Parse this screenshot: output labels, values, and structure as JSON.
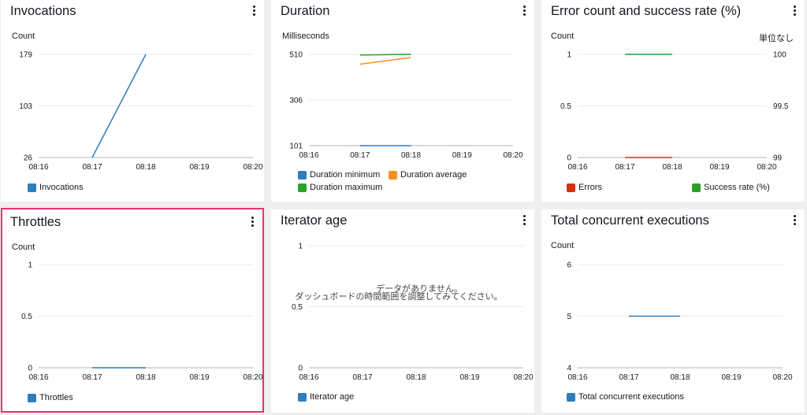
{
  "colors": {
    "blue": "#2e7dbd",
    "orange": "#f58f25",
    "green": "#2ca02c",
    "red": "#d13212",
    "grid": "#e9ebed",
    "axis": "#aab7b8",
    "highlight": "#e8336a"
  },
  "x_ticks": [
    "08:16",
    "08:17",
    "08:18",
    "08:19",
    "08:20"
  ],
  "panels": {
    "invocations": {
      "title": "Invocations",
      "left_unit": "Count",
      "legend": [
        {
          "label": "Invocations",
          "color": "#2e7dbd"
        }
      ]
    },
    "duration": {
      "title": "Duration",
      "left_unit": "Milliseconds",
      "legend": [
        {
          "label": "Duration minimum",
          "color": "#2e7dbd"
        },
        {
          "label": "Duration average",
          "color": "#f58f25"
        },
        {
          "label": "Duration maximum",
          "color": "#2ca02c"
        }
      ]
    },
    "errors": {
      "title": "Error count and success rate (%)",
      "left_unit": "Count",
      "right_unit": "単位なし",
      "legend": [
        {
          "label": "Errors",
          "color": "#d13212"
        },
        {
          "label": "Success rate (%)",
          "color": "#2ca02c"
        }
      ]
    },
    "throttles": {
      "title": "Throttles",
      "left_unit": "Count",
      "legend": [
        {
          "label": "Throttles",
          "color": "#2e7dbd"
        }
      ]
    },
    "iterator": {
      "title": "Iterator age",
      "no_data_line1": "データがありません。",
      "no_data_line2": "ダッシュボードの時間範囲を調整してみてください。",
      "legend": [
        {
          "label": "Iterator age",
          "color": "#2e7dbd"
        }
      ]
    },
    "concurrent": {
      "title": "Total concurrent executions",
      "left_unit": "Count",
      "legend": [
        {
          "label": "Total concurrent executions",
          "color": "#2e7dbd"
        }
      ]
    }
  },
  "chart_data": [
    {
      "panel": "invocations",
      "type": "line",
      "title": "Invocations",
      "ylabel": "Count",
      "x_ticks": [
        "08:16",
        "08:17",
        "08:18",
        "08:19",
        "08:20"
      ],
      "y_ticks": [
        "26",
        "103",
        "179"
      ],
      "ylim": [
        26,
        179
      ],
      "series": [
        {
          "name": "Invocations",
          "color": "#2e7dbd",
          "points": [
            [
              "08:17",
              26
            ],
            [
              "08:18",
              179
            ]
          ]
        }
      ]
    },
    {
      "panel": "duration",
      "type": "line",
      "title": "Duration",
      "ylabel": "Milliseconds",
      "x_ticks": [
        "08:16",
        "08:17",
        "08:18",
        "08:19",
        "08:20"
      ],
      "y_ticks": [
        "101",
        "306",
        "510"
      ],
      "ylim": [
        101,
        510
      ],
      "series": [
        {
          "name": "Duration minimum",
          "color": "#2e7dbd",
          "points": [
            [
              "08:17",
              101
            ],
            [
              "08:18",
              101
            ]
          ]
        },
        {
          "name": "Duration average",
          "color": "#f58f25",
          "points": [
            [
              "08:17",
              466
            ],
            [
              "08:18",
              496
            ]
          ]
        },
        {
          "name": "Duration maximum",
          "color": "#2ca02c",
          "points": [
            [
              "08:17",
              507
            ],
            [
              "08:18",
              510
            ]
          ]
        }
      ]
    },
    {
      "panel": "errors",
      "type": "line",
      "title": "Error count and success rate (%)",
      "ylabel": "Count",
      "y2label": "単位なし",
      "x_ticks": [
        "08:16",
        "08:17",
        "08:18",
        "08:19",
        "08:20"
      ],
      "y_ticks": [
        "0",
        "0.5",
        "1"
      ],
      "ylim": [
        0,
        1
      ],
      "y2_ticks": [
        "99",
        "99.5",
        "100"
      ],
      "y2lim": [
        99,
        100
      ],
      "series": [
        {
          "name": "Errors",
          "color": "#d13212",
          "axis": "left",
          "points": [
            [
              "08:17",
              0
            ],
            [
              "08:18",
              0
            ]
          ]
        },
        {
          "name": "Success rate (%)",
          "color": "#2ca02c",
          "axis": "right",
          "points": [
            [
              "08:17",
              100
            ],
            [
              "08:18",
              100
            ]
          ]
        }
      ]
    },
    {
      "panel": "throttles",
      "type": "line",
      "title": "Throttles",
      "ylabel": "Count",
      "x_ticks": [
        "08:16",
        "08:17",
        "08:18",
        "08:19",
        "08:20"
      ],
      "y_ticks": [
        "0",
        "0.5",
        "1"
      ],
      "ylim": [
        0,
        1
      ],
      "series": [
        {
          "name": "Throttles",
          "color": "#2e7dbd",
          "points": [
            [
              "08:17",
              0
            ],
            [
              "08:18",
              0
            ]
          ]
        }
      ]
    },
    {
      "panel": "iterator",
      "type": "line",
      "title": "Iterator age",
      "x_ticks": [
        "08:16",
        "08:17",
        "08:18",
        "08:19",
        "08:20"
      ],
      "y_ticks": [
        "0",
        "0.5",
        "1"
      ],
      "ylim": [
        0,
        1
      ],
      "series": [
        {
          "name": "Iterator age",
          "color": "#2e7dbd",
          "points": []
        }
      ]
    },
    {
      "panel": "concurrent",
      "type": "line",
      "title": "Total concurrent executions",
      "ylabel": "Count",
      "x_ticks": [
        "08:16",
        "08:17",
        "08:18",
        "08:19",
        "08:20"
      ],
      "y_ticks": [
        "4",
        "5",
        "6"
      ],
      "ylim": [
        4,
        6
      ],
      "series": [
        {
          "name": "Total concurrent executions",
          "color": "#2e7dbd",
          "points": [
            [
              "08:17",
              5
            ],
            [
              "08:18",
              5
            ]
          ]
        }
      ]
    }
  ]
}
